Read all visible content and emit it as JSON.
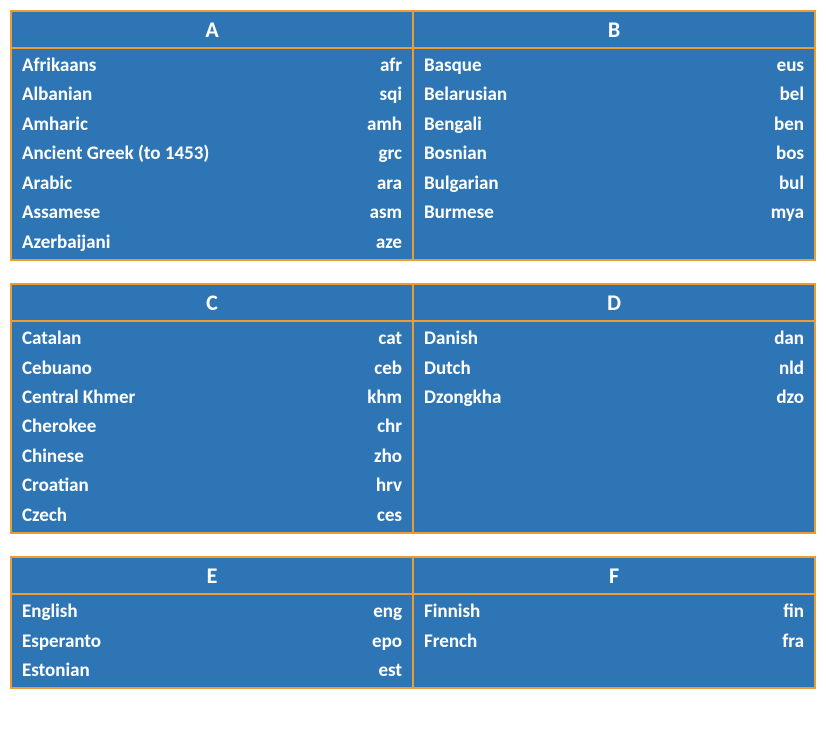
{
  "type": "infographic",
  "background_color": "#ffffff",
  "panel_background": "#2e75b6",
  "panel_border_color": "#ed9b33",
  "panel_border_width": 2,
  "text_color": "#ffffff",
  "header_fontsize": 22,
  "body_fontsize": 19,
  "font_weight": "bold",
  "font_family": "Calibri",
  "row_gap": 22,
  "groups": [
    {
      "left": {
        "letter": "A",
        "items": [
          {
            "lang": "Afrikaans",
            "code": "afr"
          },
          {
            "lang": "Albanian",
            "code": "sqi"
          },
          {
            "lang": "Amharic",
            "code": "amh"
          },
          {
            "lang": "Ancient Greek (to 1453)",
            "code": "grc"
          },
          {
            "lang": "Arabic",
            "code": "ara"
          },
          {
            "lang": "Assamese",
            "code": "asm"
          },
          {
            "lang": "Azerbaijani",
            "code": "aze"
          }
        ]
      },
      "right": {
        "letter": "B",
        "items": [
          {
            "lang": "Basque",
            "code": "eus"
          },
          {
            "lang": "Belarusian",
            "code": "bel"
          },
          {
            "lang": "Bengali",
            "code": "ben"
          },
          {
            "lang": "Bosnian",
            "code": "bos"
          },
          {
            "lang": "Bulgarian",
            "code": "bul"
          },
          {
            "lang": "Burmese",
            "code": "mya"
          }
        ]
      }
    },
    {
      "left": {
        "letter": "C",
        "items": [
          {
            "lang": "Catalan",
            "code": "cat"
          },
          {
            "lang": "Cebuano",
            "code": "ceb"
          },
          {
            "lang": "Central Khmer",
            "code": "khm"
          },
          {
            "lang": "Cherokee",
            "code": "chr"
          },
          {
            "lang": "Chinese",
            "code": "zho"
          },
          {
            "lang": "Croatian",
            "code": "hrv"
          },
          {
            "lang": "Czech",
            "code": "ces"
          }
        ]
      },
      "right": {
        "letter": "D",
        "items": [
          {
            "lang": "Danish",
            "code": "dan"
          },
          {
            "lang": "Dutch",
            "code": "nld"
          },
          {
            "lang": "Dzongkha",
            "code": "dzo"
          }
        ]
      }
    },
    {
      "left": {
        "letter": "E",
        "items": [
          {
            "lang": "English",
            "code": "eng"
          },
          {
            "lang": "Esperanto",
            "code": "epo"
          },
          {
            "lang": "Estonian",
            "code": "est"
          }
        ]
      },
      "right": {
        "letter": "F",
        "items": [
          {
            "lang": "Finnish",
            "code": "fin"
          },
          {
            "lang": "French",
            "code": "fra"
          }
        ]
      }
    }
  ]
}
